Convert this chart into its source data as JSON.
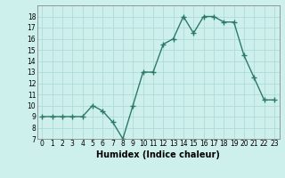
{
  "x": [
    0,
    1,
    2,
    3,
    4,
    5,
    6,
    7,
    8,
    9,
    10,
    11,
    12,
    13,
    14,
    15,
    16,
    17,
    18,
    19,
    20,
    21,
    22,
    23
  ],
  "y": [
    9,
    9,
    9,
    9,
    9,
    10,
    9.5,
    8.5,
    7,
    10,
    13,
    13,
    15.5,
    16,
    18,
    16.5,
    18,
    18,
    17.5,
    17.5,
    14.5,
    12.5,
    10.5,
    10.5
  ],
  "line_color": "#2d7a68",
  "marker": "+",
  "marker_size": 4,
  "bg_color": "#cef0ed",
  "grid_color": "#aedbd7",
  "xlabel": "Humidex (Indice chaleur)",
  "xlabel_fontsize": 7,
  "ylim": [
    7,
    19
  ],
  "xlim": [
    -0.5,
    23.5
  ],
  "yticks": [
    7,
    8,
    9,
    10,
    11,
    12,
    13,
    14,
    15,
    16,
    17,
    18
  ],
  "xtick_labels": [
    "0",
    "1",
    "2",
    "3",
    "4",
    "5",
    "6",
    "7",
    "8",
    "9",
    "10",
    "11",
    "12",
    "13",
    "14",
    "15",
    "16",
    "17",
    "18",
    "19",
    "20",
    "21",
    "22",
    "23"
  ],
  "tick_fontsize": 5.5,
  "line_width": 1.0,
  "marker_color": "#2d7a68"
}
